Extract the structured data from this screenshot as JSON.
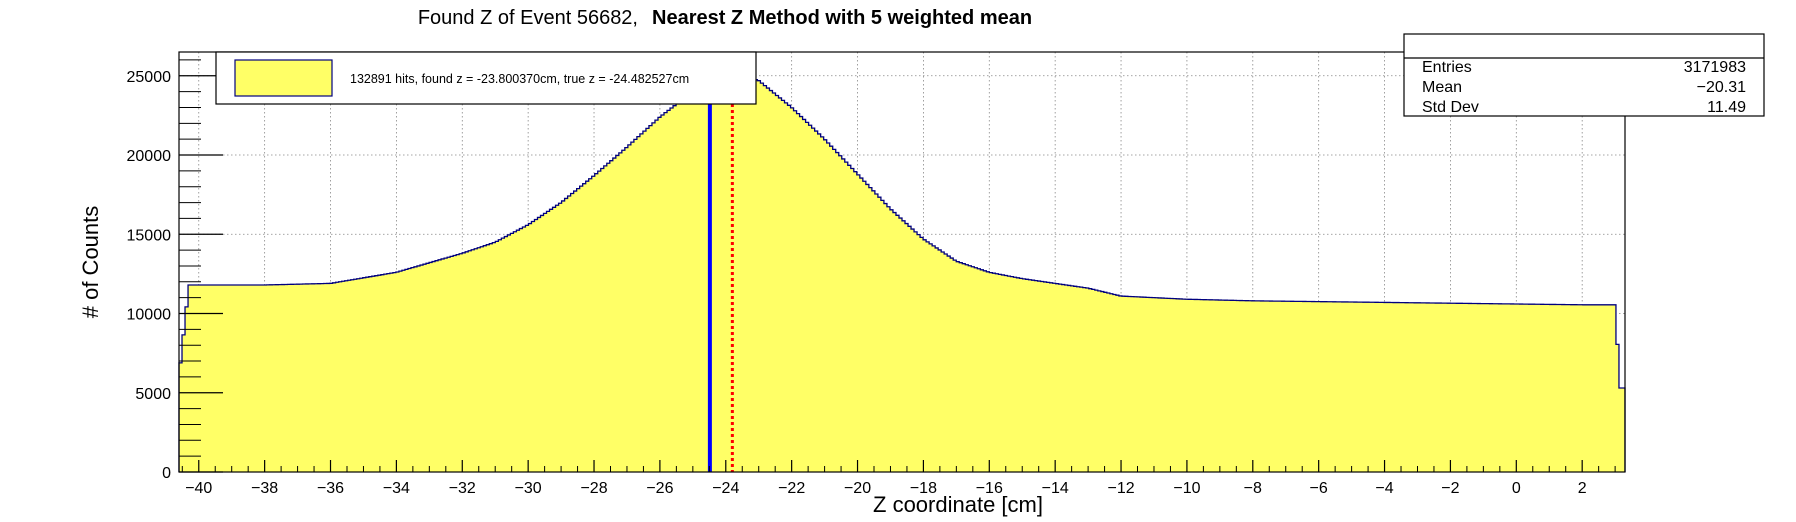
{
  "chart_data": {
    "type": "histogram",
    "title_regular": "Found Z of Event 56682,",
    "title_bold": "Nearest Z Method with 5 weighted mean",
    "xlabel": "Z coordinate [cm]",
    "ylabel": "# of Counts",
    "xlim": [
      -40.6,
      3.3
    ],
    "ylim": [
      0,
      26500
    ],
    "grid": true,
    "x_ticks": [
      -40,
      -38,
      -36,
      -34,
      -32,
      -30,
      -28,
      -26,
      -24,
      -22,
      -20,
      -18,
      -16,
      -14,
      -12,
      -10,
      -8,
      -6,
      -4,
      -2,
      0,
      2
    ],
    "x_tick_labels": [
      "−40",
      "−38",
      "−36",
      "−34",
      "−32",
      "−30",
      "−28",
      "−26",
      "−24",
      "−22",
      "−20",
      "−18",
      "−16",
      "−14",
      "−12",
      "−10",
      "−8",
      "−6",
      "−4",
      "−2",
      "0",
      "2"
    ],
    "y_ticks": [
      0,
      5000,
      10000,
      15000,
      20000,
      25000
    ],
    "y_tick_labels": [
      "0",
      "5000",
      "10000",
      "15000",
      "20000",
      "25000"
    ],
    "fill_color": "#ffff66",
    "line_color": "#00007f",
    "profile_x": [
      -40.6,
      -40.3,
      -40.0,
      -38.0,
      -36.0,
      -34.0,
      -32.0,
      -31.0,
      -30.0,
      -29.0,
      -28.0,
      -27.0,
      -26.0,
      -25.0,
      -24.0,
      -23.5,
      -23.0,
      -22.0,
      -21.0,
      -20.0,
      -19.0,
      -18.0,
      -17.0,
      -16.0,
      -15.0,
      -14.0,
      -13.0,
      -12.0,
      -11.0,
      -10.0,
      -8.0,
      -6.0,
      -4.0,
      -2.0,
      0.0,
      2.0,
      3.0,
      3.15,
      3.3
    ],
    "profile_y": [
      6000,
      11800,
      11800,
      11800,
      11900,
      12600,
      13800,
      14500,
      15600,
      17000,
      18700,
      20500,
      22400,
      24000,
      24900,
      25000,
      24700,
      23000,
      21000,
      18800,
      16600,
      14700,
      13300,
      12600,
      12200,
      11900,
      11600,
      11100,
      11000,
      10900,
      10800,
      10750,
      10700,
      10650,
      10600,
      10550,
      10550,
      5300,
      5300
    ],
    "vertical_lines": [
      {
        "x": -24.482527,
        "color": "#0000ff",
        "style": "solid"
      },
      {
        "x": -23.80037,
        "color": "#ff0000",
        "style": "dotted"
      }
    ],
    "legend": {
      "label": "132891 hits, found z = -23.800370cm, true z = -24.482527cm",
      "position": "top-left"
    },
    "stats": {
      "rows": [
        {
          "label": "Entries",
          "value": "3171983"
        },
        {
          "label": "Mean",
          "value": "−20.31"
        },
        {
          "label": "Std Dev",
          "value": "11.49"
        }
      ]
    }
  }
}
